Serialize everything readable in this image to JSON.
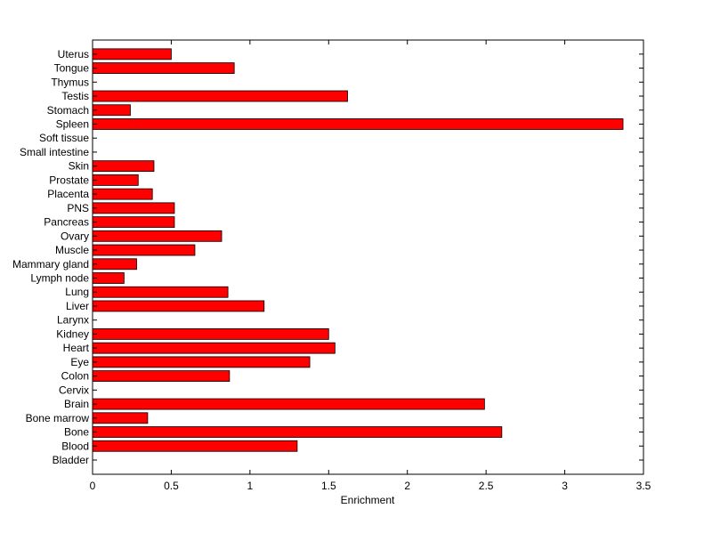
{
  "chart_data": {
    "type": "bar",
    "orientation": "horizontal",
    "xlabel": "Enrichment",
    "ylabel": "",
    "title": "",
    "xlim": [
      0,
      3.5
    ],
    "xticks": [
      0,
      0.5,
      1,
      1.5,
      2,
      2.5,
      3,
      3.5
    ],
    "xtick_labels": [
      "0",
      "0.5",
      "1",
      "1.5",
      "2",
      "2.5",
      "3",
      "3.5"
    ],
    "bar_color": "#ff0000",
    "grid": false,
    "categories": [
      "Bladder",
      "Blood",
      "Bone",
      "Bone marrow",
      "Brain",
      "Cervix",
      "Colon",
      "Eye",
      "Heart",
      "Kidney",
      "Larynx",
      "Liver",
      "Lung",
      "Lymph node",
      "Mammary gland",
      "Muscle",
      "Ovary",
      "Pancreas",
      "PNS",
      "Placenta",
      "Prostate",
      "Skin",
      "Small intestine",
      "Soft tissue",
      "Spleen",
      "Stomach",
      "Testis",
      "Thymus",
      "Tongue",
      "Uterus"
    ],
    "values": [
      0,
      1.3,
      2.6,
      0.35,
      2.49,
      0,
      0.87,
      1.38,
      1.54,
      1.5,
      0,
      1.09,
      0.86,
      0.2,
      0.28,
      0.65,
      0.82,
      0.52,
      0.52,
      0.38,
      0.29,
      0.39,
      0,
      0,
      3.37,
      0.24,
      1.62,
      0,
      0.9,
      0.5
    ]
  }
}
